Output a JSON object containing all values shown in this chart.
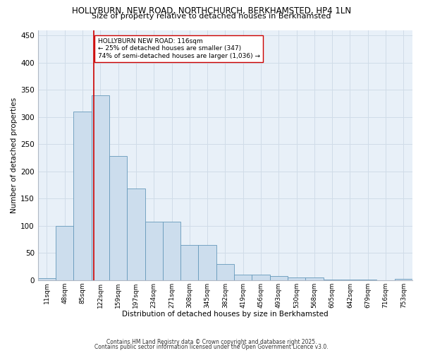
{
  "title_line1": "HOLLYBURN, NEW ROAD, NORTHCHURCH, BERKHAMSTED, HP4 1LN",
  "title_line2": "Size of property relative to detached houses in Berkhamsted",
  "xlabel": "Distribution of detached houses by size in Berkhamsted",
  "ylabel": "Number of detached properties",
  "bar_color": "#ccdded",
  "bar_edge_color": "#6699bb",
  "categories": [
    "11sqm",
    "48sqm",
    "85sqm",
    "122sqm",
    "159sqm",
    "197sqm",
    "234sqm",
    "271sqm",
    "308sqm",
    "345sqm",
    "382sqm",
    "419sqm",
    "456sqm",
    "493sqm",
    "530sqm",
    "568sqm",
    "605sqm",
    "642sqm",
    "679sqm",
    "716sqm",
    "753sqm"
  ],
  "values": [
    3,
    100,
    310,
    340,
    228,
    168,
    108,
    108,
    65,
    65,
    30,
    10,
    10,
    7,
    5,
    5,
    1,
    1,
    1,
    0,
    2
  ],
  "ylim": [
    0,
    460
  ],
  "yticks": [
    0,
    50,
    100,
    150,
    200,
    250,
    300,
    350,
    400,
    450
  ],
  "vline_x": 2.65,
  "vline_color": "#cc0000",
  "annotation_text": "HOLLYBURN NEW ROAD: 116sqm\n← 25% of detached houses are smaller (347)\n74% of semi-detached houses are larger (1,036) →",
  "annotation_box_color": "#ffffff",
  "annotation_box_edge": "#cc0000",
  "footnote1": "Contains HM Land Registry data © Crown copyright and database right 2025.",
  "footnote2": "Contains public sector information licensed under the Open Government Licence v3.0.",
  "grid_color": "#d0dce8",
  "background_color": "#e8f0f8"
}
